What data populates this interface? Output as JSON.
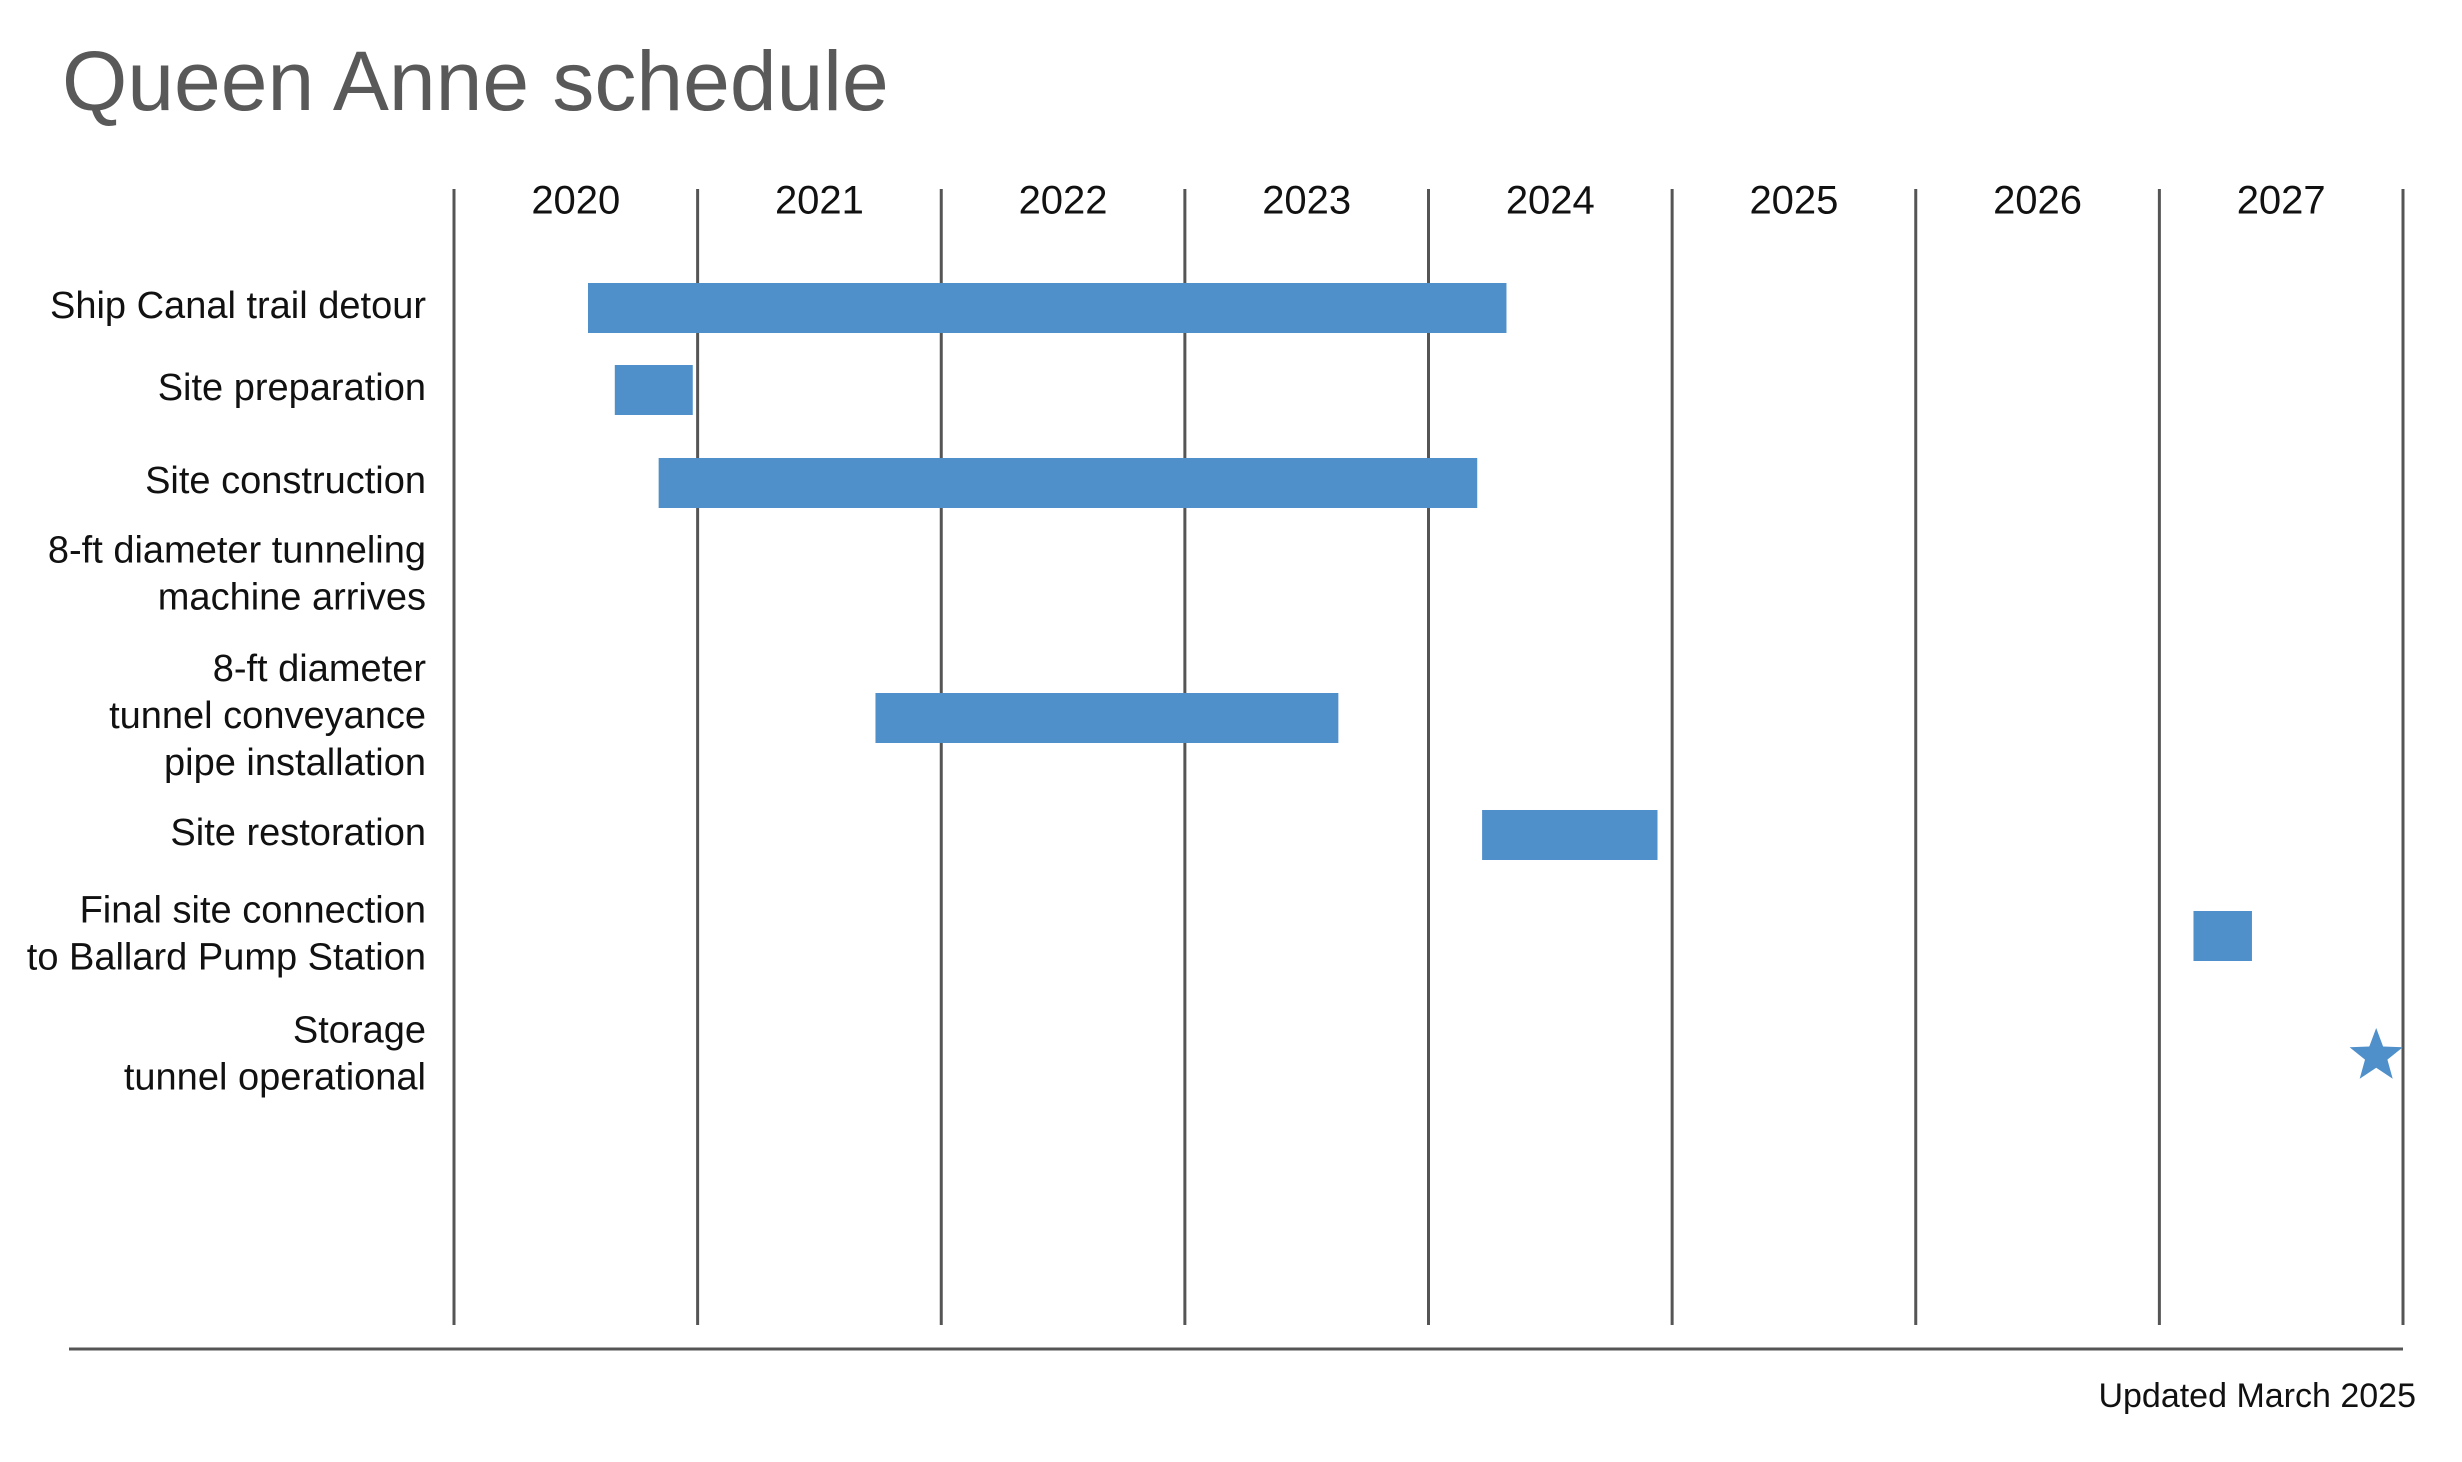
{
  "chart_data": {
    "type": "gantt",
    "title": "Queen Anne schedule",
    "categories": [
      "Ship Canal trail detour",
      "Site preparation",
      "Site construction",
      "8-ft diameter tunneling\nmachine arrives",
      "8-ft diameter\ntunnel conveyance\npipe installation",
      "Site restoration",
      "Final site connection\nto Ballard Pump Station",
      "Storage\ntunnel operational"
    ],
    "start": [
      2020.55,
      2020.66,
      2020.84,
      null,
      2021.73,
      2024.22,
      2027.14,
      2027.89
    ],
    "end": [
      2024.32,
      2020.98,
      2024.2,
      null,
      2023.63,
      2024.94,
      2027.38,
      null
    ],
    "color": "#4f8fca",
    "xlim": [
      2020,
      2028
    ],
    "xticks": [
      2020,
      2021,
      2022,
      2023,
      2024,
      2025,
      2026,
      2027
    ],
    "grid": true,
    "annotation": "Updated March 2025"
  }
}
